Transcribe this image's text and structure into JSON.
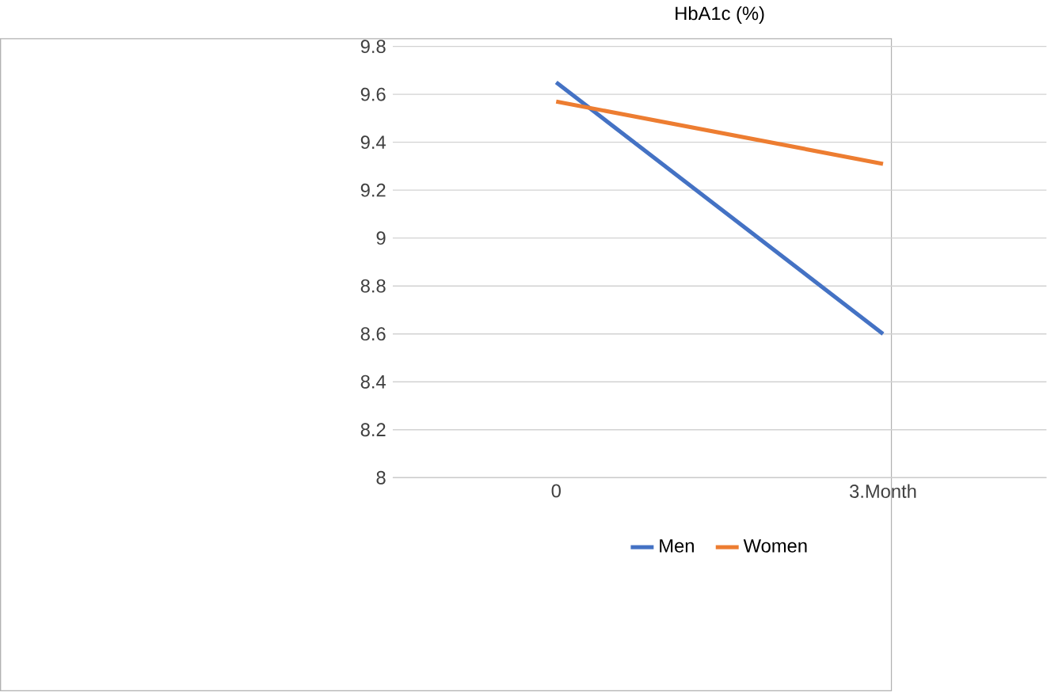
{
  "chart_data": {
    "type": "line",
    "title": "HbA1c (%)",
    "categories": [
      "0",
      "3.Month"
    ],
    "series": [
      {
        "name": "Men",
        "color": "#4472c4",
        "values": [
          9.65,
          8.6
        ]
      },
      {
        "name": "Women",
        "color": "#ed7d31",
        "values": [
          9.57,
          9.31
        ]
      }
    ],
    "ylim": [
      8,
      9.8
    ],
    "yticks": [
      8,
      8.2,
      8.4,
      8.6,
      8.8,
      9,
      9.2,
      9.4,
      9.6,
      9.8
    ],
    "grid": "y",
    "legend": "bottom",
    "marker": "none",
    "line_style": "solid"
  }
}
